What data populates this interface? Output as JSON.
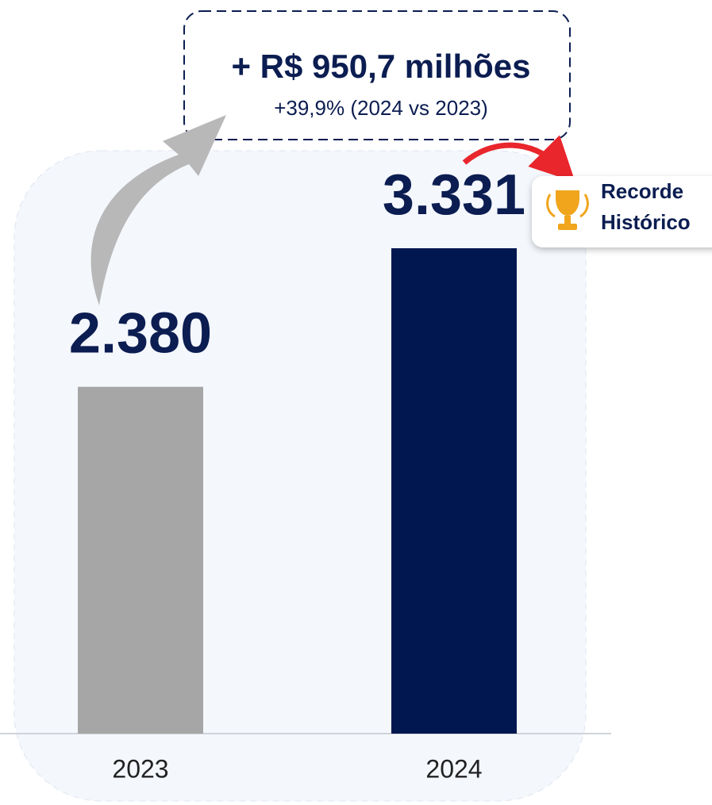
{
  "chart_data": {
    "type": "bar",
    "categories": [
      "2023",
      "2024"
    ],
    "values": [
      2380,
      3331
    ],
    "value_labels": [
      "2.380",
      "3.331"
    ],
    "colors": [
      "#a6a6a6",
      "#00174f"
    ],
    "annotations": [
      "+ R$ 950,7 milhões",
      "+39,9% (2024 vs 2023)",
      "Recorde",
      "Histórico"
    ]
  }
}
